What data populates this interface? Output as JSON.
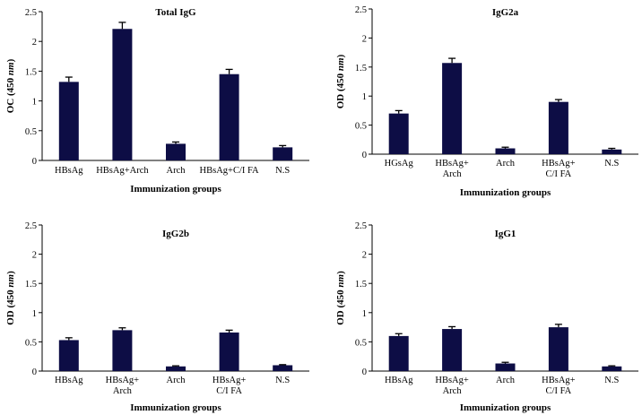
{
  "colors": {
    "bar": "#0d0d45",
    "axis": "#000000"
  },
  "chart_data": [
    {
      "type": "bar",
      "title": "Total IgG",
      "xlabel": "Immunization groups",
      "ylabel_prefix": "OC (450 ",
      "ylabel_unit": "nm",
      "ylabel_suffix": ")",
      "ylim": [
        0,
        2.5
      ],
      "yticks": [
        "0",
        "0.5",
        "1",
        "1.5",
        "2",
        "2.5"
      ],
      "categories": [
        [
          "HBsAg"
        ],
        [
          "HBsAg+Arch"
        ],
        [
          "Arch"
        ],
        [
          "HBsAg+C/I FA"
        ],
        [
          "N.S"
        ]
      ],
      "values": [
        1.32,
        2.21,
        0.28,
        1.45,
        0.22
      ],
      "errors": [
        0.08,
        0.11,
        0.03,
        0.08,
        0.03
      ]
    },
    {
      "type": "bar",
      "title": "IgG2a",
      "xlabel": "Immunization groups",
      "ylabel_prefix": "OD (450 ",
      "ylabel_unit": "nm",
      "ylabel_suffix": ")",
      "ylim": [
        0,
        2.5
      ],
      "yticks": [
        "0",
        "0.5",
        "1",
        "1.5",
        "2",
        "2.5"
      ],
      "categories": [
        [
          "HGsAg"
        ],
        [
          "HBsAg+",
          "Arch"
        ],
        [
          "Arch"
        ],
        [
          "HBsAg+",
          "C/I FA"
        ],
        [
          "N.S"
        ]
      ],
      "values": [
        0.7,
        1.57,
        0.1,
        0.9,
        0.08
      ],
      "errors": [
        0.05,
        0.08,
        0.02,
        0.04,
        0.02
      ]
    },
    {
      "type": "bar",
      "title": "IgG2b",
      "xlabel": "Immunization groups",
      "ylabel_prefix": "OD (450 ",
      "ylabel_unit": "nm",
      "ylabel_suffix": ")",
      "ylim": [
        0,
        2.5
      ],
      "yticks": [
        "0",
        "0.5",
        "1",
        "1.5",
        "2",
        "2.5"
      ],
      "categories": [
        [
          "HBsAg"
        ],
        [
          "HBsAg+",
          "Arch"
        ],
        [
          "Arch"
        ],
        [
          "HBsAg+",
          "C/I FA"
        ],
        [
          "N.S"
        ]
      ],
      "values": [
        0.53,
        0.7,
        0.08,
        0.66,
        0.1
      ],
      "errors": [
        0.04,
        0.04,
        0.01,
        0.04,
        0.01
      ]
    },
    {
      "type": "bar",
      "title": "IgG1",
      "xlabel": "Immunization groups",
      "ylabel_prefix": "OD (450 ",
      "ylabel_unit": "nm",
      "ylabel_suffix": ")",
      "ylim": [
        0,
        2.5
      ],
      "yticks": [
        "0",
        "0.5",
        "1",
        "1.5",
        "2",
        "2.5"
      ],
      "categories": [
        [
          "HBsAg"
        ],
        [
          "HBsAg+",
          "Arch"
        ],
        [
          "Arch"
        ],
        [
          "HBsAg+",
          "C/I FA"
        ],
        [
          "N.S"
        ]
      ],
      "values": [
        0.6,
        0.72,
        0.13,
        0.75,
        0.08
      ],
      "errors": [
        0.04,
        0.04,
        0.02,
        0.05,
        0.01
      ]
    }
  ]
}
